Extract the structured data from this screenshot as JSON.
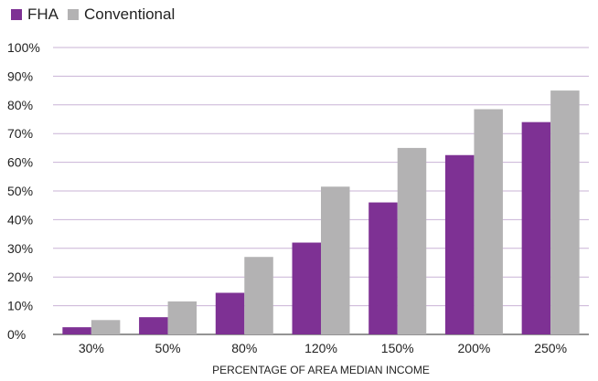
{
  "chart_data": {
    "type": "bar",
    "categories": [
      "30%",
      "50%",
      "80%",
      "120%",
      "150%",
      "200%",
      "250%"
    ],
    "series": [
      {
        "name": "FHA",
        "values": [
          2.5,
          6,
          14.5,
          32,
          46,
          62.5,
          74
        ],
        "color": "#7e3194"
      },
      {
        "name": "Conventional",
        "values": [
          5,
          11.5,
          27,
          51.5,
          65,
          78.5,
          85
        ],
        "color": "#b3b2b3"
      }
    ],
    "title": "",
    "xlabel": "PERCENTAGE OF AREA MEDIAN INCOME",
    "ylabel": "",
    "ylim": [
      0,
      100
    ],
    "yticks": [
      "0%",
      "10%",
      "20%",
      "30%",
      "40%",
      "50%",
      "60%",
      "70%",
      "80%",
      "90%",
      "100%"
    ],
    "grid": true,
    "gridline_color": "#c9b3d6",
    "legend_position": "top-left"
  }
}
